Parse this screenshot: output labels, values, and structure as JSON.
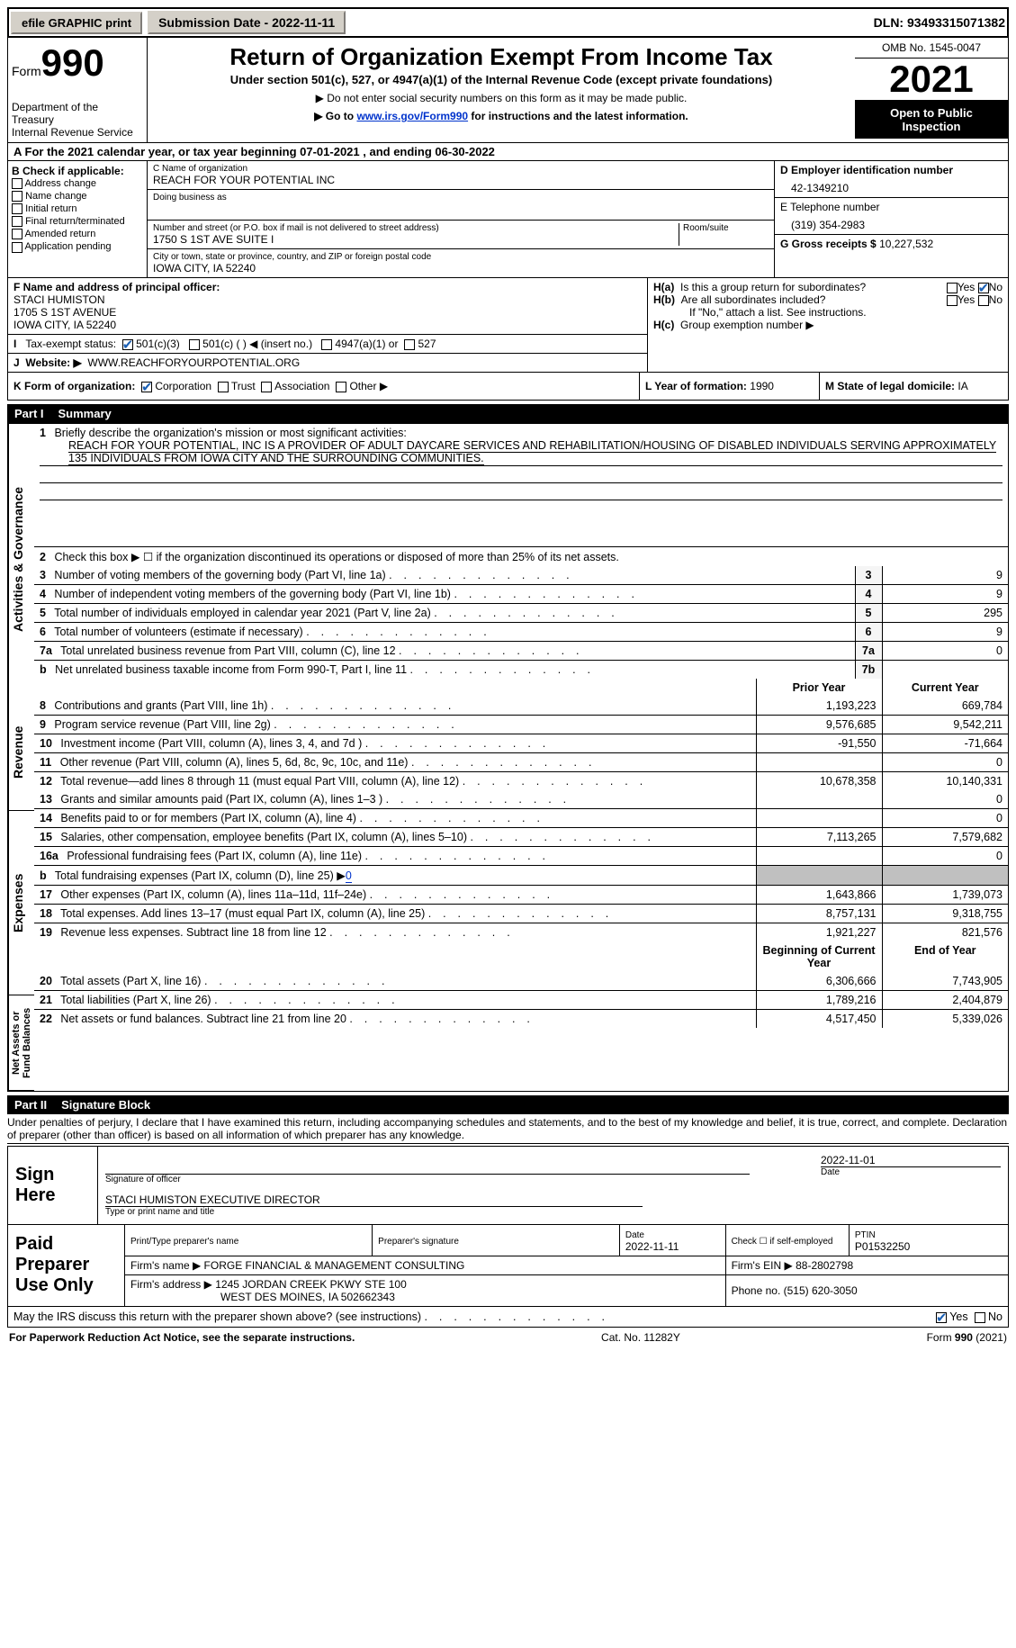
{
  "topbar": {
    "efile_label": "efile GRAPHIC print",
    "submission_label": "Submission Date - 2022-11-11",
    "dln": "DLN: 93493315071382"
  },
  "header": {
    "form_prefix": "Form",
    "form_number": "990",
    "dept": "Department of the Treasury",
    "irs": "Internal Revenue Service",
    "title": "Return of Organization Exempt From Income Tax",
    "subtitle": "Under section 501(c), 527, or 4947(a)(1) of the Internal Revenue Code (except private foundations)",
    "note1": "▶ Do not enter social security numbers on this form as it may be made public.",
    "note2_pre": "▶ Go to ",
    "note2_link": "www.irs.gov/Form990",
    "note2_post": " for instructions and the latest information.",
    "omb": "OMB No. 1545-0047",
    "year": "2021",
    "open_insp": "Open to Public Inspection"
  },
  "section_a": "A For the 2021 calendar year, or tax year beginning 07-01-2021    , and ending 06-30-2022",
  "section_b": {
    "label": "B Check if applicable:",
    "opts": [
      "Address change",
      "Name change",
      "Initial return",
      "Final return/terminated",
      "Amended return",
      "Application pending"
    ]
  },
  "section_c": {
    "name_label": "C Name of organization",
    "name": "REACH FOR YOUR POTENTIAL INC",
    "dba_label": "Doing business as",
    "street_label": "Number and street (or P.O. box if mail is not delivered to street address)",
    "street": "1750 S 1ST AVE SUITE I",
    "room_label": "Room/suite",
    "city_label": "City or town, state or province, country, and ZIP or foreign postal code",
    "city": "IOWA CITY, IA  52240"
  },
  "section_d": {
    "label": "D Employer identification number",
    "value": "42-1349210"
  },
  "section_e": {
    "label": "E Telephone number",
    "value": "(319) 354-2983"
  },
  "section_g": {
    "label": "G Gross receipts $",
    "value": "10,227,532"
  },
  "section_f": {
    "label": "F  Name and address of principal officer:",
    "name": "STACI HUMISTON",
    "addr1": "1705 S 1ST AVENUE",
    "addr2": "IOWA CITY, IA   52240"
  },
  "section_h": {
    "ha": "Is this a group return for subordinates?",
    "hb": "Are all subordinates included?",
    "hb_note": "If \"No,\" attach a list. See instructions.",
    "hc": "Group exemption number ▶"
  },
  "tax_exempt": {
    "label": "Tax-exempt status:",
    "opt1": "501(c)(3)",
    "opt2": "501(c) (   ) ◀ (insert no.)",
    "opt3": "4947(a)(1) or",
    "opt4": "527"
  },
  "website": {
    "label": "Website: ▶",
    "value": "WWW.REACHFORYOURPOTENTIAL.ORG"
  },
  "k_row": {
    "label": "K Form of organization:",
    "opts": [
      "Corporation",
      "Trust",
      "Association",
      "Other ▶"
    ],
    "l_label": "L Year of formation:",
    "l_value": "1990",
    "m_label": "M State of legal domicile:",
    "m_value": "IA"
  },
  "part1": {
    "header_num": "Part I",
    "header_title": "Summary",
    "line1_label": "Briefly describe the organization's mission or most significant activities:",
    "mission": "REACH FOR YOUR POTENTIAL, INC IS A PROVIDER OF ADULT DAYCARE SERVICES AND REHABILITATION/HOUSING OF DISABLED INDIVIDUALS SERVING APPROXIMATELY 135 INDIVIDUALS FROM IOWA CITY AND THE SURROUNDING COMMUNITIES.",
    "line2": "Check this box ▶ ☐ if the organization discontinued its operations or disposed of more than 25% of its net assets.",
    "vert_labels": [
      "Activities & Governance",
      "Revenue",
      "Expenses",
      "Net Assets or Fund Balances"
    ],
    "col_headers": {
      "prior": "Prior Year",
      "current": "Current Year",
      "begin": "Beginning of Current Year",
      "end": "End of Year"
    },
    "rows_ag": [
      {
        "n": "3",
        "t": "Number of voting members of the governing body (Part VI, line 1a)",
        "box": "3",
        "v": "9"
      },
      {
        "n": "4",
        "t": "Number of independent voting members of the governing body (Part VI, line 1b)",
        "box": "4",
        "v": "9"
      },
      {
        "n": "5",
        "t": "Total number of individuals employed in calendar year 2021 (Part V, line 2a)",
        "box": "5",
        "v": "295"
      },
      {
        "n": "6",
        "t": "Total number of volunteers (estimate if necessary)",
        "box": "6",
        "v": "9"
      },
      {
        "n": "7a",
        "t": "Total unrelated business revenue from Part VIII, column (C), line 12",
        "box": "7a",
        "v": "0"
      },
      {
        "n": "b",
        "t": "Net unrelated business taxable income from Form 990-T, Part I, line 11",
        "box": "7b",
        "v": ""
      }
    ],
    "rows_rev": [
      {
        "n": "8",
        "t": "Contributions and grants (Part VIII, line 1h)",
        "p": "1,193,223",
        "c": "669,784"
      },
      {
        "n": "9",
        "t": "Program service revenue (Part VIII, line 2g)",
        "p": "9,576,685",
        "c": "9,542,211"
      },
      {
        "n": "10",
        "t": "Investment income (Part VIII, column (A), lines 3, 4, and 7d )",
        "p": "-91,550",
        "c": "-71,664"
      },
      {
        "n": "11",
        "t": "Other revenue (Part VIII, column (A), lines 5, 6d, 8c, 9c, 10c, and 11e)",
        "p": "",
        "c": "0"
      },
      {
        "n": "12",
        "t": "Total revenue—add lines 8 through 11 (must equal Part VIII, column (A), line 12)",
        "p": "10,678,358",
        "c": "10,140,331"
      }
    ],
    "rows_exp": [
      {
        "n": "13",
        "t": "Grants and similar amounts paid (Part IX, column (A), lines 1–3 )",
        "p": "",
        "c": "0"
      },
      {
        "n": "14",
        "t": "Benefits paid to or for members (Part IX, column (A), line 4)",
        "p": "",
        "c": "0"
      },
      {
        "n": "15",
        "t": "Salaries, other compensation, employee benefits (Part IX, column (A), lines 5–10)",
        "p": "7,113,265",
        "c": "7,579,682"
      },
      {
        "n": "16a",
        "t": "Professional fundraising fees (Part IX, column (A), line 11e)",
        "p": "",
        "c": "0"
      },
      {
        "n": "b",
        "t": "Total fundraising expenses (Part IX, column (D), line 25) ▶0",
        "p": "GREY",
        "c": "GREY"
      },
      {
        "n": "17",
        "t": "Other expenses (Part IX, column (A), lines 11a–11d, 11f–24e)",
        "p": "1,643,866",
        "c": "1,739,073"
      },
      {
        "n": "18",
        "t": "Total expenses. Add lines 13–17 (must equal Part IX, column (A), line 25)",
        "p": "8,757,131",
        "c": "9,318,755"
      },
      {
        "n": "19",
        "t": "Revenue less expenses. Subtract line 18 from line 12",
        "p": "1,921,227",
        "c": "821,576"
      }
    ],
    "rows_net": [
      {
        "n": "20",
        "t": "Total assets (Part X, line 16)",
        "p": "6,306,666",
        "c": "7,743,905"
      },
      {
        "n": "21",
        "t": "Total liabilities (Part X, line 26)",
        "p": "1,789,216",
        "c": "2,404,879"
      },
      {
        "n": "22",
        "t": "Net assets or fund balances. Subtract line 21 from line 20",
        "p": "4,517,450",
        "c": "5,339,026"
      }
    ]
  },
  "part2": {
    "header_num": "Part II",
    "header_title": "Signature Block",
    "declaration": "Under penalties of perjury, I declare that I have examined this return, including accompanying schedules and statements, and to the best of my knowledge and belief, it is true, correct, and complete. Declaration of preparer (other than officer) is based on all information of which preparer has any knowledge."
  },
  "sign": {
    "label": "Sign Here",
    "sig_date": "2022-11-01",
    "sig_label": "Signature of officer",
    "date_label": "Date",
    "name": "STACI HUMISTON  EXECUTIVE DIRECTOR",
    "name_label": "Type or print name and title"
  },
  "prep": {
    "label": "Paid Preparer Use Only",
    "col1": "Print/Type preparer's name",
    "col2": "Preparer's signature",
    "col3_label": "Date",
    "col3_val": "2022-11-11",
    "col4": "Check ☐ if self-employed",
    "col5_label": "PTIN",
    "col5_val": "P01532250",
    "firm_name_label": "Firm's name      ▶",
    "firm_name": "FORGE FINANCIAL & MANAGEMENT CONSULTING",
    "firm_ein_label": "Firm's EIN ▶",
    "firm_ein": "88-2802798",
    "firm_addr_label": "Firm's address ▶",
    "firm_addr1": "1245 JORDAN CREEK PKWY STE 100",
    "firm_addr2": "WEST DES MOINES, IA  502662343",
    "phone_label": "Phone no.",
    "phone": "(515) 620-3050"
  },
  "footer": {
    "irs_discuss": "May the IRS discuss this return with the preparer shown above? (see instructions)",
    "paperwork": "For Paperwork Reduction Act Notice, see the separate instructions.",
    "cat": "Cat. No. 11282Y",
    "form": "Form 990 (2021)"
  }
}
